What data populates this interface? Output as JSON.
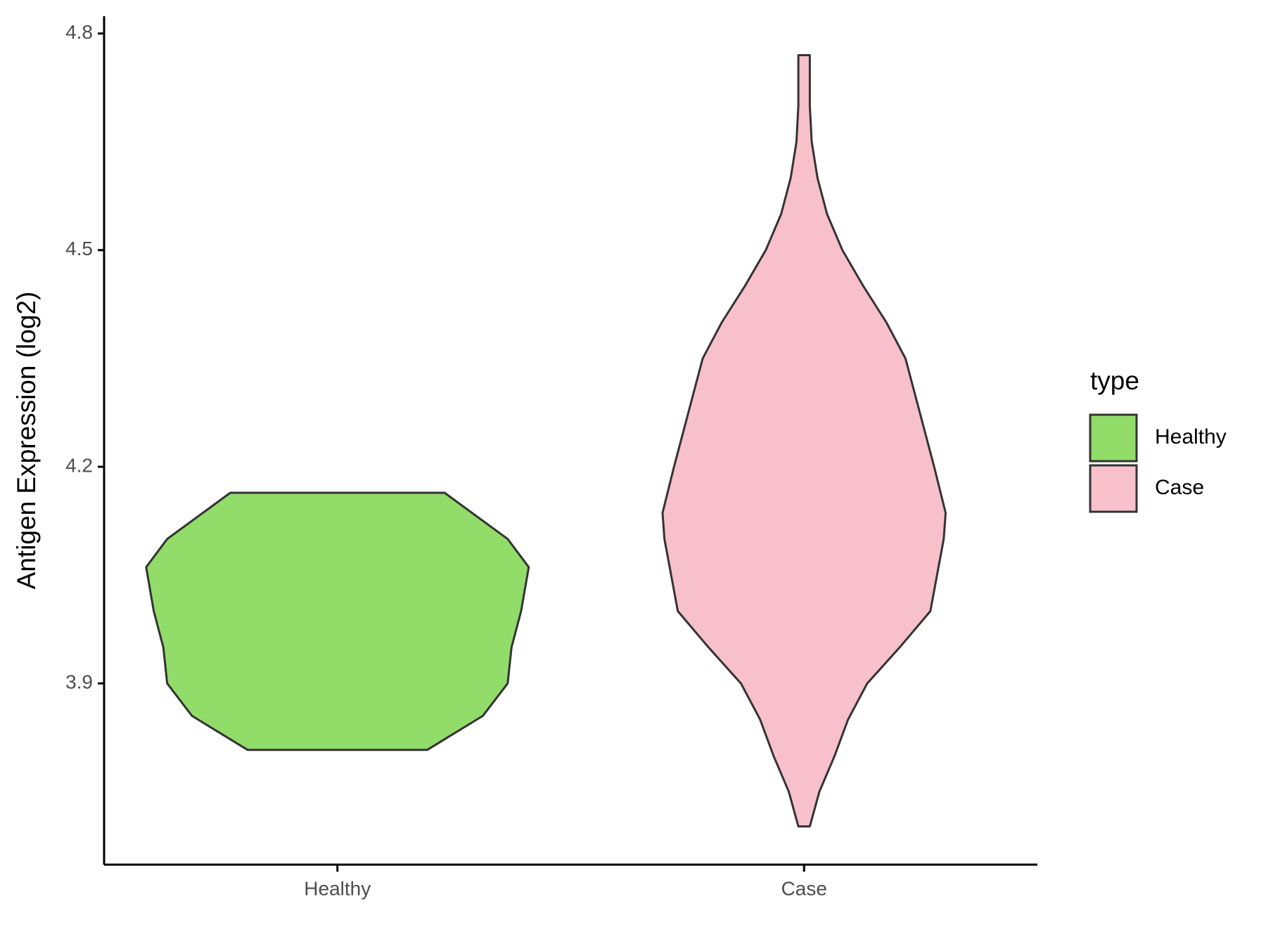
{
  "chart_data": {
    "type": "violin",
    "y_label": "Antigen Expression (log2)",
    "categories": [
      "Healthy",
      "Case"
    ],
    "legend_title": "type",
    "legend_position": "right",
    "ylim": [
      3.649,
      4.824
    ],
    "yticks": [
      3.9,
      4.2,
      4.5,
      4.8
    ],
    "series": [
      {
        "name": "Healthy",
        "color": "#92dc6a",
        "y": [
          3.808,
          3.855,
          3.9,
          3.95,
          4.0,
          4.061,
          4.1,
          4.164
        ],
        "density": [
          0.47,
          0.76,
          0.89,
          0.91,
          0.96,
          1,
          0.89,
          0.56
        ]
      },
      {
        "name": "Case",
        "color": "#f7c0cb",
        "y": [
          3.702,
          3.75,
          3.8,
          3.85,
          3.9,
          3.95,
          4.0,
          4.1,
          4.136,
          4.2,
          4.25,
          4.3,
          4.35,
          4.4,
          4.45,
          4.5,
          4.55,
          4.6,
          4.65,
          4.7,
          4.77
        ],
        "density": [
          0.03,
          0.08,
          0.16,
          0.23,
          0.33,
          0.5,
          0.66,
          0.73,
          0.74,
          0.68,
          0.63,
          0.58,
          0.53,
          0.43,
          0.31,
          0.2,
          0.12,
          0.07,
          0.04,
          0.03,
          0.03
        ]
      }
    ]
  }
}
